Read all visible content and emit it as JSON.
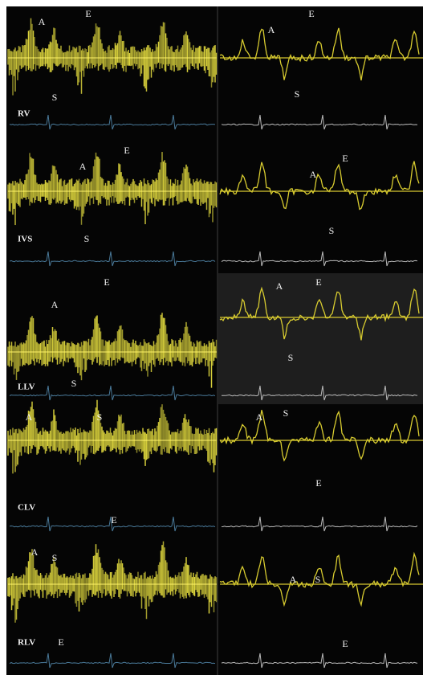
{
  "panels": [
    {
      "label": "RV",
      "left": [
        "A",
        "E",
        "S"
      ],
      "right": [
        "A",
        "E",
        "S"
      ]
    },
    {
      "label": "IVS",
      "left": [
        "A",
        "E",
        "S"
      ],
      "right": [
        "E",
        "A",
        "S"
      ]
    },
    {
      "label": "LLV",
      "left": [
        "E",
        "A",
        "S"
      ],
      "right": [
        "A",
        "E",
        "S"
      ]
    },
    {
      "label": "CLV",
      "left": [
        "A",
        "S",
        "E"
      ],
      "right": [
        "A",
        "S",
        "E"
      ]
    },
    {
      "label": "RLV",
      "left": [
        "A",
        "S",
        "E"
      ],
      "right": [
        "A",
        "S",
        "E"
      ]
    }
  ]
}
